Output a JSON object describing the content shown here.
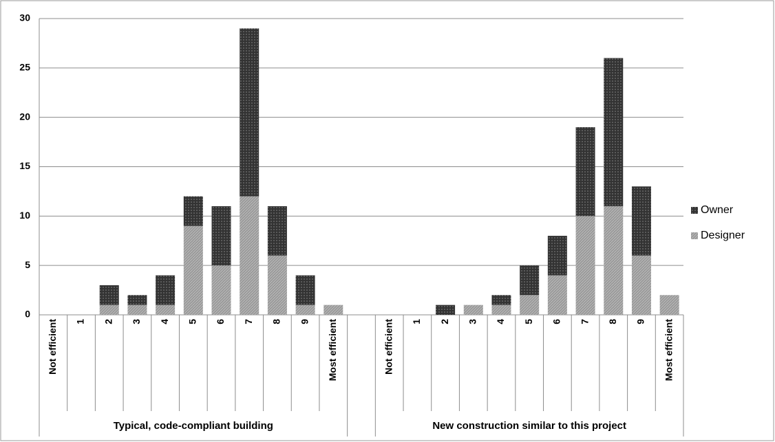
{
  "chart_data": {
    "type": "bar",
    "stacked": true,
    "groups": [
      "Typical, code-compliant building",
      "New construction similar to this project"
    ],
    "categories": [
      "Not efficient",
      "1",
      "2",
      "3",
      "4",
      "5",
      "6",
      "7",
      "8",
      "9",
      "Most efficient",
      null,
      "Not efficient",
      "1",
      "2",
      "3",
      "4",
      "5",
      "6",
      "7",
      "8",
      "9",
      "Most efficient"
    ],
    "series": [
      {
        "name": "Designer",
        "color": "#9a9a9a",
        "values": [
          0,
          0,
          1,
          1,
          1,
          9,
          5,
          12,
          6,
          1,
          1,
          null,
          0,
          0,
          0,
          1,
          1,
          2,
          4,
          10,
          11,
          6,
          2
        ]
      },
      {
        "name": "Owner",
        "color": "#333333",
        "values": [
          0,
          0,
          2,
          1,
          3,
          3,
          6,
          17,
          5,
          3,
          0,
          null,
          0,
          0,
          1,
          0,
          1,
          3,
          4,
          9,
          15,
          7,
          0
        ]
      }
    ],
    "ylim": [
      0,
      30
    ],
    "yticks": [
      0,
      5,
      10,
      15,
      20,
      25,
      30
    ],
    "grid": true,
    "legend": "right"
  }
}
